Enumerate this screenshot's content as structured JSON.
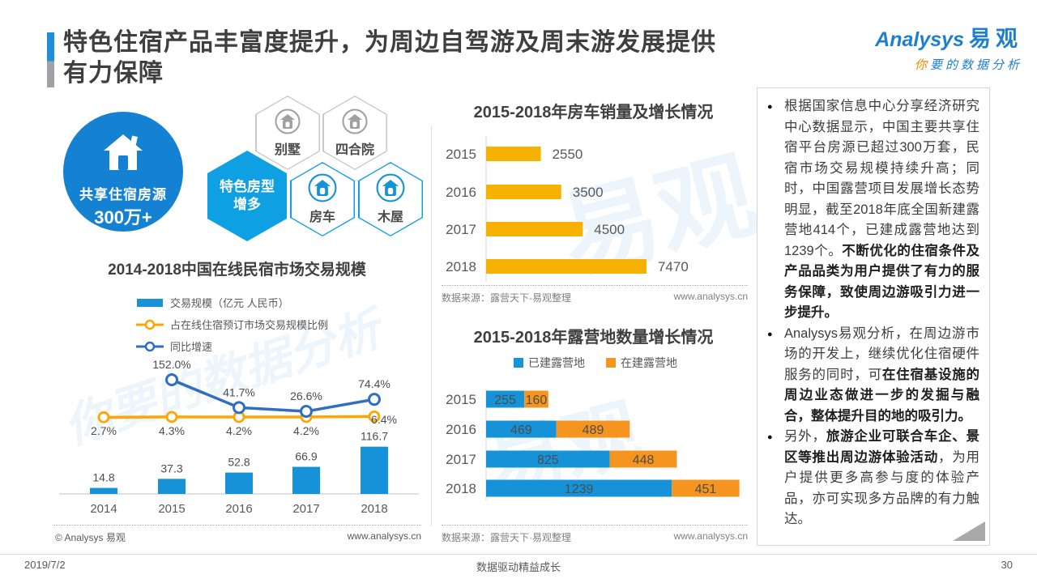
{
  "header": {
    "title_line1": "特色住宿产品丰富度提升，为周边自驾游及周末游发展提供",
    "title_line2": "有力保障"
  },
  "logo": {
    "brand_en": "Analysys",
    "brand_cn": "易观",
    "tagline_first": "你",
    "tagline_rest": "要的数据分析"
  },
  "watermarks": [
    "易观",
    "你要的数据分析",
    "易观"
  ],
  "left": {
    "circle": {
      "line1": "共享住宿房源",
      "line2": "300万+"
    },
    "hexagons": [
      {
        "label": "别墅",
        "variant": "gray"
      },
      {
        "label": "四合院",
        "variant": "gray"
      },
      {
        "label_line1": "特色房型",
        "label_line2": "增多",
        "variant": "solid"
      },
      {
        "label": "房车",
        "variant": "blue"
      },
      {
        "label": "木屋",
        "variant": "blue"
      }
    ]
  },
  "chart_data": [
    {
      "type": "bar",
      "subtype": "vertical bars + two percentage lines",
      "title": "2014-2018中国在线民宿市场交易规模",
      "categories": [
        "2014",
        "2015",
        "2016",
        "2017",
        "2018"
      ],
      "series": [
        {
          "name": "交易规模（亿元 人民币）",
          "type": "bar",
          "values": [
            14.8,
            37.3,
            52.8,
            66.9,
            116.7
          ]
        },
        {
          "name": "占在线住宿预订市场交易规模比例",
          "type": "line",
          "values": [
            2.7,
            4.3,
            4.2,
            4.2,
            6.4
          ]
        },
        {
          "name": "同比增速",
          "type": "line",
          "values": [
            null,
            152.0,
            41.7,
            26.6,
            74.4
          ]
        }
      ],
      "labels": {
        "bars": [
          "14.8",
          "37.3",
          "52.8",
          "66.9",
          "116.7"
        ],
        "share": [
          "2.7%",
          "4.3%",
          "4.2%",
          "4.2%",
          "6.4%"
        ],
        "growth": [
          null,
          "152.0%",
          "41.7%",
          "26.6%",
          "74.4%"
        ]
      },
      "legend_position": "top-left",
      "grid": false,
      "source_left": "© Analysys 易观",
      "source_right": "www.analysys.cn"
    },
    {
      "type": "bar",
      "orientation": "horizontal",
      "title": "2015-2018年房车销量及增长情况",
      "categories": [
        "2015",
        "2016",
        "2017",
        "2018"
      ],
      "values": [
        2550,
        3500,
        4500,
        7470
      ],
      "labels": [
        "2550",
        "3500",
        "4500",
        "7470"
      ],
      "xlim": [
        0,
        8000
      ],
      "grid": false,
      "source_left": "数据来源：露营天下-易观整理",
      "source_right": "www.analysys.cn"
    },
    {
      "type": "bar",
      "orientation": "horizontal",
      "stacked": true,
      "title": "2015-2018年露营地数量增长情况",
      "categories": [
        "2015",
        "2016",
        "2017",
        "2018"
      ],
      "series": [
        {
          "name": "已建露营地",
          "values": [
            255,
            469,
            825,
            1239
          ]
        },
        {
          "name": "在建露营地",
          "values": [
            160,
            489,
            448,
            451
          ]
        }
      ],
      "xlim": [
        0,
        1750
      ],
      "legend_position": "top-center",
      "grid": false,
      "source_left": "数据来源：露营天下·易观整理",
      "source_right": "www.analysys.cn"
    }
  ],
  "right_panel": {
    "bullets": [
      {
        "segments": [
          {
            "text": "根据国家信息中心分享经济研究中心数据显示，中国主要共享住宿平台房源已超过300万套，民宿市场交易规模持续升高；同时，中国露营项目发展增长态势明显，截至2018年底全国新建露营地414个，已建成露营地达到1239个。",
            "bold": false
          },
          {
            "text": "不断优化的住宿条件及产品品类为用户提供了有力的服务保障，致使周边游吸引力进一步提升。",
            "bold": true
          }
        ]
      },
      {
        "segments": [
          {
            "text": "Analysys易观分析，在周边游市场的开发上，继续优化住宿硬件服务的同时，可",
            "bold": false
          },
          {
            "text": "在住宿基设施的周边业态做进一步的发掘与融合，整体提升目的地的吸引力。",
            "bold": true
          }
        ]
      },
      {
        "segments": [
          {
            "text": "另外，",
            "bold": false
          },
          {
            "text": "旅游企业可联合车企、景区等推出周边游体验活动",
            "bold": true
          },
          {
            "text": "，为用户提供更多高参与度的体验产品，亦可实现多方品牌的有力触达。",
            "bold": false
          }
        ]
      }
    ]
  },
  "footer": {
    "date": "2019/7/2",
    "center": "数据驱动精益成长",
    "page": "30"
  },
  "colors": {
    "blue": "#1693D8",
    "deep_blue": "#2F6EC0",
    "orange_line": "#FFA400",
    "rv_bar": "#F7B100",
    "camp_orange": "#F5951F",
    "hex_blue": "#0FA0E3",
    "circle_blue": "#1581D2",
    "gray_hex": "#C9C9C9",
    "icon_gray": "#A0A0A0",
    "label_gray": "#595959",
    "value_gray": "#4D4D4D",
    "stack_value": "#4D4D4D"
  }
}
